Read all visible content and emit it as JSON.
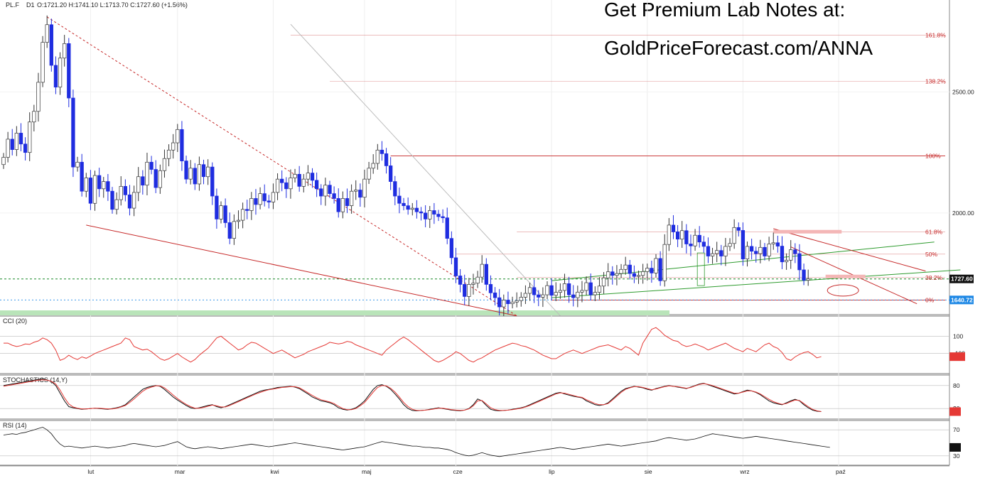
{
  "header": {
    "symbol": "PL.F",
    "timeframe": "D1",
    "ohlc": "O:1721.20  H:1741.10  L:1713.70  C:1727.60  (+1.56%)"
  },
  "watermark": {
    "line1": "Get Premium Lab Notes at:",
    "line2": "GoldPriceForecast.com/ANNA"
  },
  "colors": {
    "up_candle": "#ffffff",
    "down_candle": "#1f2de0",
    "fib": "#c62828",
    "channel": "#2e9b2e",
    "downtrend": "#c62828",
    "current_price": "#1b8a2a",
    "support": "#1e88e5",
    "cci_line": "#e53935",
    "stoch_k": "#111111",
    "stoch_d": "#e53935",
    "rsi_line": "#111111"
  },
  "chart_data": [
    {
      "type": "candlestick",
      "name": "price",
      "price_axis": {
        "ticks": [
          2500.0,
          2000.0
        ],
        "ylim": [
          1580,
          2880
        ]
      },
      "current_price": {
        "label": "1727.60",
        "value": 1727.6
      },
      "support_price": {
        "label": "1640.72",
        "value": 1640.72
      },
      "fib_levels": [
        {
          "label": "161.8%",
          "value": 2735
        },
        {
          "label": "138.2%",
          "value": 2544
        },
        {
          "label": "100%",
          "value": 2236
        },
        {
          "label": "61.8%",
          "value": 1922
        },
        {
          "label": "50%",
          "value": 1830
        },
        {
          "label": "38.2%",
          "value": 1733
        },
        {
          "label": "0%",
          "value": 1640
        }
      ],
      "x_labels": [
        "lut",
        "mar",
        "kwi",
        "maj",
        "cze",
        "lip",
        "sie",
        "wrz",
        "paź"
      ],
      "x_label_index": [
        20,
        40,
        62,
        83,
        104,
        126,
        148,
        170,
        192
      ],
      "closes": [
        2230,
        2305,
        2262,
        2330,
        2285,
        2250,
        2376,
        2420,
        2540,
        2705,
        2778,
        2610,
        2520,
        2640,
        2700,
        2475,
        2190,
        2210,
        2090,
        2145,
        2040,
        2155,
        2100,
        2130,
        2090,
        2015,
        2055,
        2110,
        2075,
        2020,
        2085,
        2150,
        2115,
        2210,
        2180,
        2105,
        2175,
        2225,
        2260,
        2290,
        2345,
        2215,
        2140,
        2185,
        2120,
        2200,
        2150,
        2190,
        2070,
        1975,
        2030,
        1960,
        1895,
        1965,
        1970,
        2015,
        2010,
        2060,
        2035,
        2080,
        2050,
        2045,
        2085,
        2140,
        2125,
        2100,
        2145,
        2160,
        2110,
        2140,
        2165,
        2135,
        2100,
        2070,
        2115,
        2080,
        2060,
        2005,
        2060,
        2030,
        2090,
        2095,
        2065,
        2140,
        2185,
        2205,
        2260,
        2245,
        2195,
        2130,
        2070,
        2040,
        2030,
        2015,
        2020,
        2005,
        2000,
        1975,
        2010,
        1995,
        1985,
        1980,
        1895,
        1815,
        1740,
        1705,
        1655,
        1705,
        1710,
        1735,
        1788,
        1705,
        1670,
        1650,
        1612,
        1640,
        1625,
        1632,
        1638,
        1652,
        1668,
        1692,
        1662,
        1652,
        1662,
        1700,
        1660,
        1672,
        1680,
        1708,
        1662,
        1650,
        1673,
        1680,
        1712,
        1662,
        1672,
        1698,
        1732,
        1757,
        1742,
        1750,
        1767,
        1785,
        1750,
        1738,
        1742,
        1758,
        1772,
        1752,
        1812,
        1720,
        1870,
        1950,
        1922,
        1892,
        1927,
        1872,
        1864,
        1908,
        1880,
        1862,
        1822,
        1832,
        1845,
        1822,
        1862,
        1874,
        1940,
        1928,
        1810,
        1862,
        1842,
        1832,
        1858,
        1822,
        1872,
        1877,
        1863,
        1798,
        1805,
        1848,
        1832,
        1765,
        1722,
        1728
      ]
    },
    {
      "type": "line",
      "name": "CCI (20)",
      "title": "CCI (20)",
      "ylim": [
        -300,
        300
      ],
      "ticks": [
        100,
        -100
      ],
      "tick_labels": [
        "100",
        "-100"
      ],
      "last_label": "-137",
      "values": [
        20,
        20,
        -5,
        -20,
        -10,
        10,
        5,
        30,
        45,
        80,
        60,
        20,
        -60,
        -180,
        -160,
        -120,
        -150,
        -170,
        -140,
        -155,
        -130,
        -100,
        -80,
        -60,
        -40,
        -20,
        0,
        20,
        80,
        60,
        -20,
        -40,
        -60,
        -50,
        -80,
        -120,
        -160,
        -180,
        -160,
        -130,
        -100,
        -140,
        -170,
        -200,
        -170,
        -120,
        -80,
        -40,
        20,
        80,
        100,
        60,
        20,
        -20,
        -60,
        -40,
        0,
        30,
        20,
        -10,
        -40,
        -70,
        -100,
        -80,
        -60,
        -90,
        -120,
        -150,
        -130,
        -110,
        -80,
        -60,
        -40,
        -20,
        0,
        30,
        20,
        10,
        20,
        40,
        30,
        0,
        -20,
        -40,
        -60,
        -80,
        -100,
        -120,
        -60,
        -20,
        20,
        60,
        90,
        60,
        20,
        -20,
        -60,
        -100,
        -140,
        -180,
        -200,
        -180,
        -150,
        -120,
        -80,
        -100,
        -140,
        -180,
        -200,
        -170,
        -150,
        -120,
        -90,
        -60,
        -40,
        -20,
        0,
        20,
        10,
        -10,
        -20,
        -40,
        -60,
        -90,
        -120,
        -140,
        -160,
        -160,
        -130,
        -100,
        -80,
        -60,
        -80,
        -100,
        -80,
        -60,
        -40,
        -20,
        -10,
        0,
        -20,
        -40,
        -60,
        -20,
        -40,
        -80,
        -120,
        20,
        100,
        180,
        200,
        160,
        110,
        80,
        50,
        40,
        0,
        -20,
        -10,
        10,
        -10,
        -30,
        -60,
        -40,
        -20,
        0,
        20,
        -10,
        -40,
        -60,
        -80,
        -40,
        -60,
        -80,
        -40,
        0,
        20,
        -20,
        -40,
        -90,
        -160,
        -180,
        -140,
        -110,
        -90,
        -80,
        -110,
        -150,
        -137
      ]
    },
    {
      "type": "line",
      "name": "STOCHASTICS (14,Y)",
      "title": "STOCHASTICS (14,Y)",
      "ylim": [
        0,
        100
      ],
      "ticks": [
        80,
        20
      ],
      "tick_labels": [
        "80",
        "20"
      ],
      "last_label": "12",
      "series": [
        {
          "name": "%K",
          "values": [
            80,
            82,
            84,
            86,
            88,
            90,
            92,
            94,
            96,
            97,
            95,
            90,
            80,
            60,
            40,
            25,
            22,
            20,
            18,
            19,
            20,
            21,
            20,
            19,
            18,
            20,
            22,
            25,
            30,
            40,
            50,
            60,
            70,
            75,
            78,
            80,
            78,
            70,
            60,
            50,
            42,
            35,
            28,
            22,
            20,
            22,
            25,
            28,
            30,
            25,
            22,
            25,
            30,
            35,
            40,
            45,
            50,
            55,
            60,
            65,
            68,
            70,
            72,
            75,
            76,
            77,
            78,
            76,
            72,
            65,
            58,
            50,
            45,
            40,
            38,
            35,
            30,
            22,
            18,
            16,
            18,
            22,
            30,
            40,
            55,
            70,
            80,
            82,
            78,
            70,
            58,
            45,
            30,
            20,
            15,
            14,
            15,
            16,
            18,
            20,
            22,
            20,
            18,
            16,
            15,
            14,
            16,
            20,
            30,
            45,
            40,
            28,
            18,
            15,
            14,
            15,
            16,
            18,
            20,
            22,
            25,
            30,
            35,
            40,
            45,
            50,
            55,
            60,
            62,
            58,
            55,
            52,
            50,
            48,
            40,
            35,
            30,
            28,
            30,
            35,
            45,
            55,
            65,
            72,
            75,
            78,
            76,
            74,
            70,
            68,
            72,
            75,
            78,
            80,
            78,
            76,
            74,
            72,
            76,
            80,
            84,
            86,
            82,
            78,
            74,
            70,
            66,
            62,
            58,
            60,
            64,
            68,
            66,
            62,
            56,
            48,
            40,
            35,
            32,
            30,
            35,
            40,
            44,
            40,
            30,
            22,
            16,
            13,
            12
          ]
        },
        {
          "name": "%D",
          "values": [
            78,
            80,
            82,
            84,
            86,
            88,
            90,
            92,
            94,
            95,
            94,
            91,
            84,
            68,
            48,
            32,
            24,
            21,
            19,
            19,
            20,
            21,
            21,
            20,
            19,
            19,
            21,
            24,
            28,
            36,
            45,
            55,
            65,
            72,
            76,
            79,
            79,
            74,
            65,
            55,
            46,
            38,
            31,
            25,
            21,
            21,
            23,
            26,
            29,
            27,
            24,
            24,
            28,
            33,
            38,
            43,
            48,
            53,
            58,
            62,
            66,
            69,
            71,
            73,
            75,
            76,
            77,
            77,
            74,
            68,
            61,
            54,
            48,
            43,
            40,
            37,
            33,
            26,
            20,
            17,
            17,
            20,
            27,
            36,
            49,
            63,
            75,
            80,
            79,
            73,
            63,
            50,
            36,
            25,
            18,
            15,
            15,
            16,
            17,
            19,
            21,
            21,
            19,
            17,
            16,
            15,
            16,
            19,
            27,
            40,
            41,
            32,
            22,
            17,
            15,
            15,
            16,
            17,
            19,
            21,
            24,
            28,
            33,
            38,
            43,
            48,
            53,
            58,
            61,
            60,
            57,
            54,
            51,
            49,
            43,
            38,
            33,
            30,
            30,
            33,
            42,
            52,
            62,
            70,
            74,
            77,
            77,
            75,
            72,
            69,
            71,
            74,
            77,
            79,
            78,
            77,
            75,
            73,
            75,
            79,
            83,
            85,
            83,
            80,
            76,
            72,
            68,
            64,
            60,
            60,
            63,
            66,
            66,
            63,
            58,
            51,
            44,
            38,
            34,
            31,
            33,
            38,
            42,
            41,
            33,
            25,
            18,
            14,
            12
          ]
        }
      ]
    },
    {
      "type": "line",
      "name": "RSI (14)",
      "title": "RSI (14)",
      "ylim": [
        20,
        80
      ],
      "ticks": [
        70,
        30
      ],
      "tick_labels": [
        "70",
        "30"
      ],
      "last_label": "43",
      "values": [
        62,
        63,
        64,
        63,
        65,
        66,
        68,
        70,
        72,
        74,
        70,
        64,
        55,
        48,
        44,
        45,
        44,
        43,
        42,
        43,
        44,
        45,
        44,
        43,
        42,
        43,
        44,
        45,
        46,
        48,
        49,
        48,
        47,
        46,
        45,
        44,
        45,
        46,
        48,
        50,
        52,
        48,
        44,
        42,
        41,
        42,
        43,
        44,
        43,
        42,
        41,
        42,
        43,
        44,
        45,
        46,
        47,
        48,
        47,
        46,
        45,
        44,
        45,
        46,
        47,
        48,
        49,
        50,
        49,
        48,
        47,
        46,
        45,
        44,
        43,
        42,
        41,
        40,
        39,
        40,
        41,
        42,
        43,
        44,
        46,
        48,
        50,
        52,
        51,
        50,
        49,
        48,
        47,
        46,
        45,
        45,
        44,
        43,
        43,
        42,
        42,
        41,
        40,
        38,
        35,
        33,
        31,
        30,
        31,
        33,
        35,
        33,
        31,
        30,
        29,
        30,
        31,
        32,
        33,
        34,
        35,
        36,
        37,
        38,
        39,
        40,
        41,
        42,
        43,
        42,
        41,
        40,
        41,
        42,
        43,
        44,
        45,
        46,
        47,
        48,
        47,
        46,
        45,
        46,
        47,
        48,
        49,
        50,
        51,
        52,
        53,
        55,
        57,
        58,
        57,
        56,
        55,
        54,
        55,
        56,
        58,
        60,
        62,
        64,
        63,
        62,
        61,
        60,
        59,
        58,
        57,
        58,
        59,
        60,
        59,
        58,
        57,
        56,
        55,
        54,
        53,
        52,
        51,
        50,
        49,
        48,
        47,
        46,
        45,
        44,
        43
      ]
    }
  ]
}
